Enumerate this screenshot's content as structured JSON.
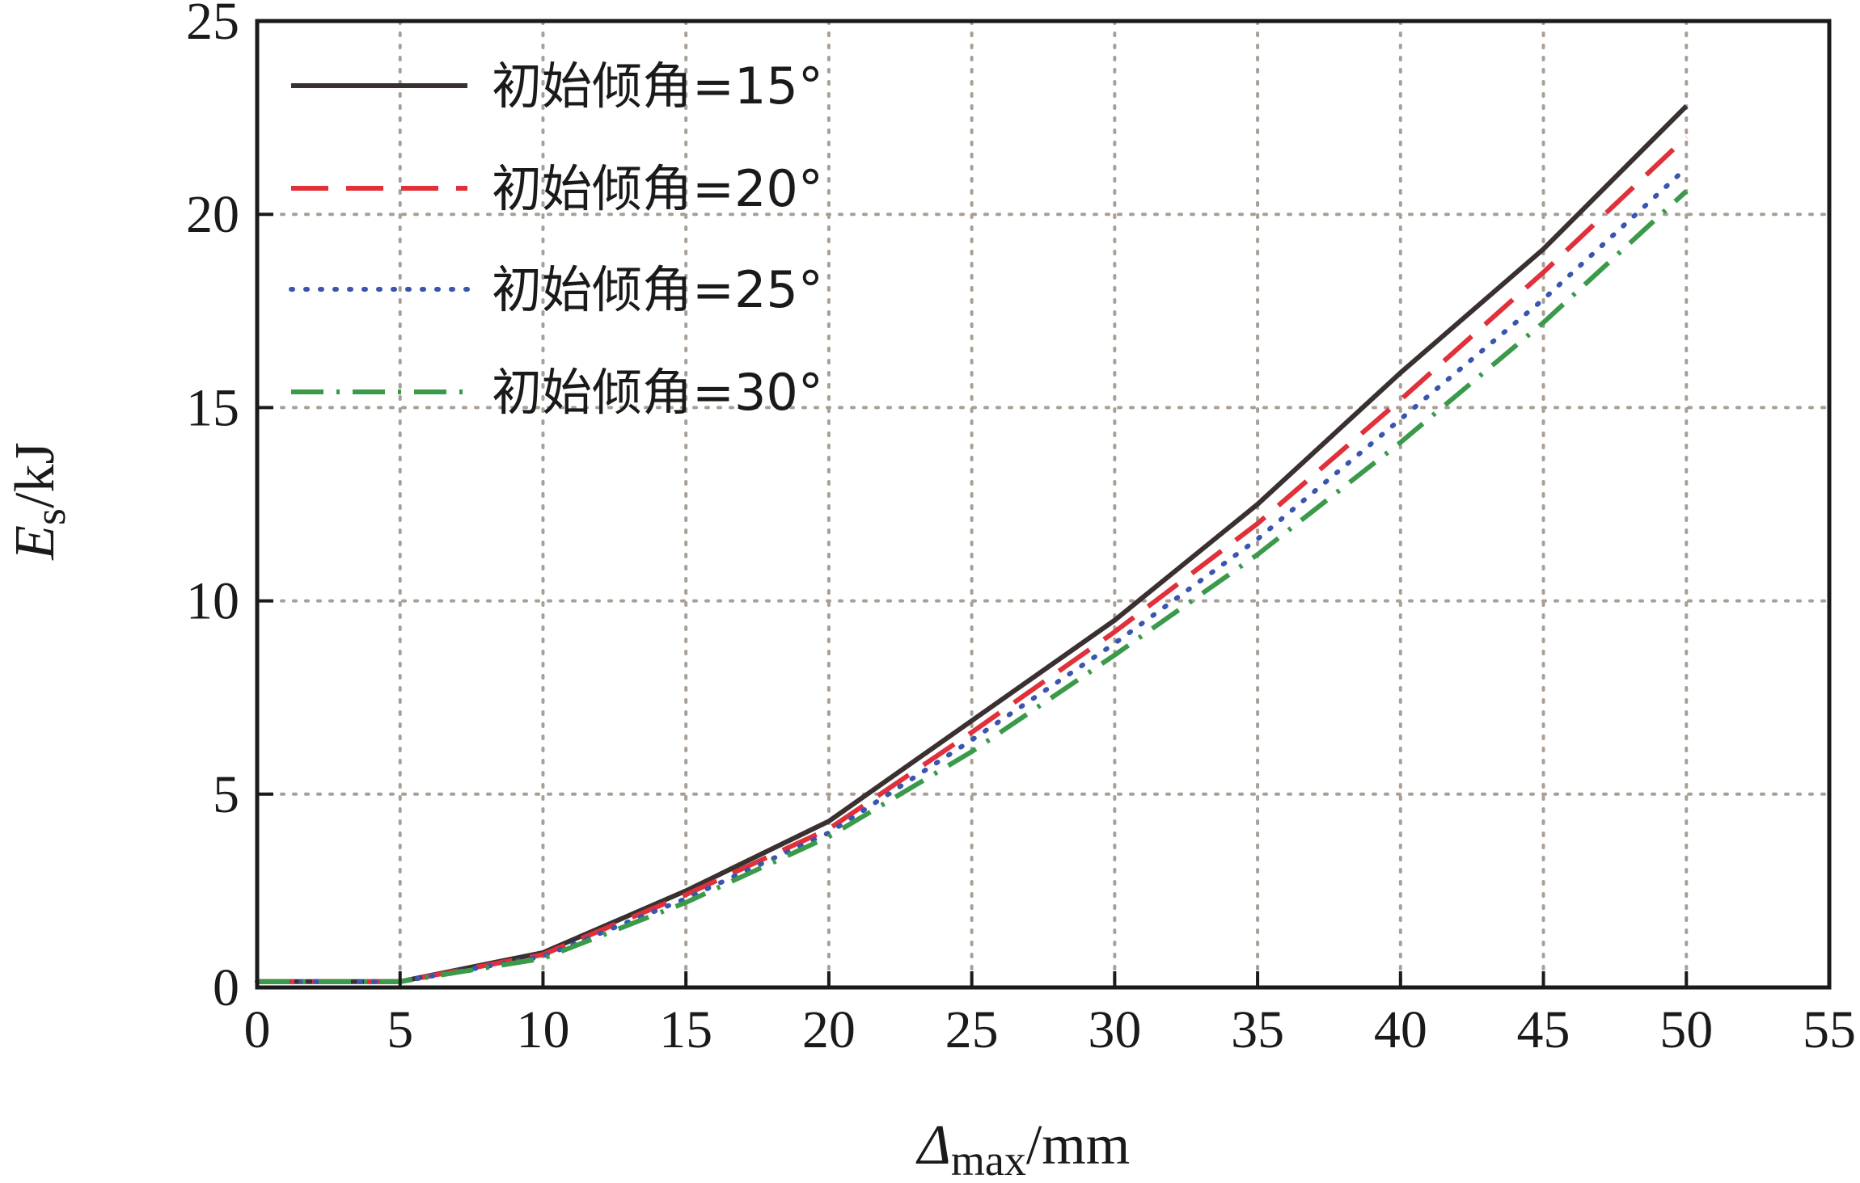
{
  "chart_data": {
    "type": "line",
    "title": "",
    "xlabel": {
      "symbol": "Δ",
      "subscript": "max",
      "unit": "/mm"
    },
    "ylabel": {
      "symbol": "E",
      "subscript": "s",
      "unit": "/kJ"
    },
    "xlim": [
      0,
      55
    ],
    "ylim": [
      0,
      25
    ],
    "xticks": [
      0,
      5,
      10,
      15,
      20,
      25,
      30,
      35,
      40,
      45,
      50,
      55
    ],
    "yticks": [
      0,
      5,
      10,
      15,
      20,
      25
    ],
    "grid": "dotted",
    "legend_position": "top-left",
    "series": [
      {
        "name": "初始倾角=15°",
        "color": "#3a3030",
        "style": "solid",
        "x": [
          0,
          5,
          10,
          15,
          20,
          25,
          30,
          35,
          40,
          45,
          50
        ],
        "y": [
          0.15,
          0.15,
          0.9,
          2.5,
          4.3,
          6.9,
          9.5,
          12.5,
          15.9,
          19.1,
          22.8
        ]
      },
      {
        "name": "初始倾角=20°",
        "color": "#e0303a",
        "style": "dashed",
        "x": [
          0,
          5,
          10,
          15,
          20,
          25,
          30,
          35,
          40,
          45,
          50
        ],
        "y": [
          0.15,
          0.15,
          0.85,
          2.4,
          4.1,
          6.6,
          9.2,
          12.0,
          15.2,
          18.5,
          22.0
        ]
      },
      {
        "name": "初始倾角=25°",
        "color": "#3a55b0",
        "style": "dotted",
        "x": [
          0,
          5,
          10,
          15,
          20,
          25,
          30,
          35,
          40,
          45,
          50
        ],
        "y": [
          0.15,
          0.15,
          0.8,
          2.3,
          4.0,
          6.4,
          8.9,
          11.6,
          14.7,
          17.8,
          21.2
        ]
      },
      {
        "name": "初始倾角=30°",
        "color": "#3a9a4a",
        "style": "dashdot",
        "x": [
          0,
          5,
          10,
          15,
          20,
          25,
          30,
          35,
          40,
          45,
          50
        ],
        "y": [
          0.15,
          0.15,
          0.75,
          2.2,
          3.9,
          6.1,
          8.6,
          11.2,
          14.1,
          17.2,
          20.6
        ]
      }
    ]
  }
}
